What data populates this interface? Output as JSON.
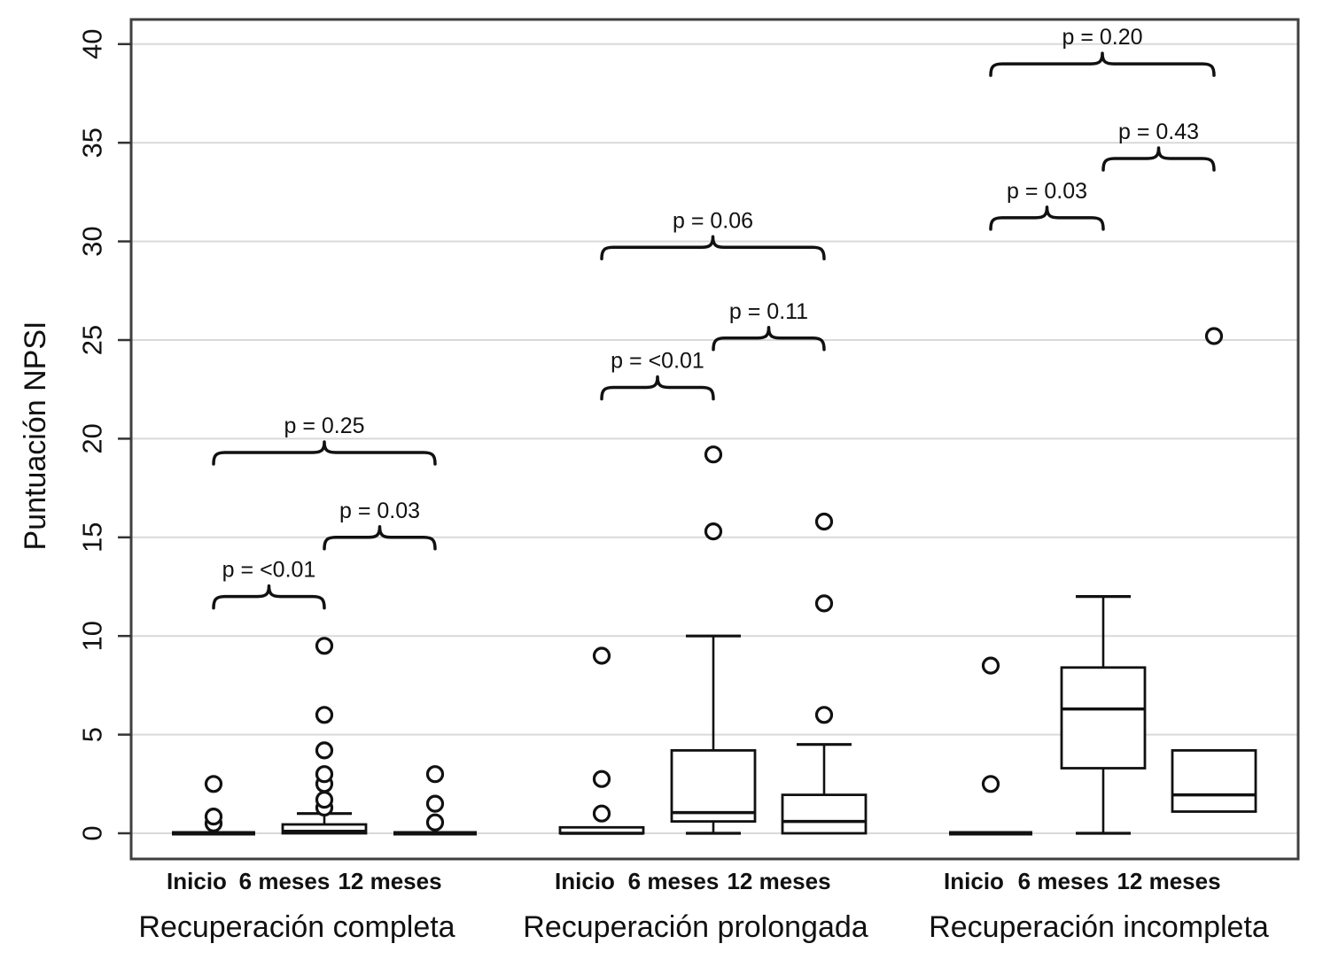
{
  "chart_data": {
    "type": "boxplot",
    "title": "",
    "ylabel": "Puntuación NPSI",
    "xlabel": "",
    "ylim": [
      -1.3,
      41.3
    ],
    "yticks": [
      0,
      5,
      10,
      15,
      20,
      25,
      30,
      35,
      40
    ],
    "grid": "horizontal gridlines every 5 units",
    "legend": "none",
    "colors": {
      "line": "#111111",
      "text": "#111111",
      "grid": "#d9d9d9",
      "border": "#3f3f3f",
      "background": "#ffffff",
      "box_fill": "#ffffff"
    },
    "x_sublabels": [
      "Inicio",
      "6 meses",
      "12 meses"
    ],
    "groups": [
      {
        "label": "Recuperación completa",
        "series": [
          {
            "label": "Inicio",
            "min": 0,
            "q1": 0,
            "median": 0,
            "q3": 0,
            "max": 0,
            "outliers": [
              0.5,
              0.85,
              2.5
            ]
          },
          {
            "label": "6 meses",
            "min": 0,
            "q1": 0,
            "median": 0.1,
            "q3": 0.45,
            "max": 1.0,
            "outliers": [
              1.3,
              1.7,
              2.5,
              3.0,
              4.2,
              6.0,
              9.5
            ]
          },
          {
            "label": "12 meses",
            "min": 0,
            "q1": 0,
            "median": 0,
            "q3": 0,
            "max": 0,
            "outliers": [
              0.55,
              1.5,
              3.0
            ]
          }
        ],
        "comparisons": [
          {
            "label": "p = <0.01",
            "from_idx": 0,
            "to_idx": 1,
            "height": 12.0
          },
          {
            "label": "p = 0.03",
            "from_idx": 1,
            "to_idx": 2,
            "height": 15.0
          },
          {
            "label": "p = 0.25",
            "from_idx": 0,
            "to_idx": 2,
            "height": 19.3
          }
        ]
      },
      {
        "label": "Recuperación prolongada",
        "series": [
          {
            "label": "Inicio",
            "min": 0,
            "q1": 0,
            "median": 0,
            "q3": 0.3,
            "max": 0.3,
            "outliers": [
              1.0,
              2.75,
              9.0
            ]
          },
          {
            "label": "6 meses",
            "min": 0,
            "q1": 0.6,
            "median": 1.05,
            "q3": 4.2,
            "max": 10.0,
            "outliers": [
              15.3,
              19.2
            ]
          },
          {
            "label": "12 meses",
            "min": 0,
            "q1": 0,
            "median": 0.6,
            "q3": 1.95,
            "max": 4.5,
            "outliers": [
              6.0,
              11.65,
              15.8
            ]
          }
        ],
        "comparisons": [
          {
            "label": "p = <0.01",
            "from_idx": 0,
            "to_idx": 1,
            "height": 22.6
          },
          {
            "label": "p = 0.11",
            "from_idx": 1,
            "to_idx": 2,
            "height": 25.1
          },
          {
            "label": "p = 0.06",
            "from_idx": 0,
            "to_idx": 2,
            "height": 29.7
          }
        ]
      },
      {
        "label": "Recuperación incompleta",
        "series": [
          {
            "label": "Inicio",
            "min": 0,
            "q1": 0,
            "median": 0,
            "q3": 0,
            "max": 0,
            "outliers": [
              2.5,
              8.5
            ]
          },
          {
            "label": "6 meses",
            "min": 0,
            "q1": 3.3,
            "median": 6.3,
            "q3": 8.4,
            "max": 12.0,
            "outliers": []
          },
          {
            "label": "12 meses",
            "min": 1.1,
            "q1": 1.1,
            "median": 1.95,
            "q3": 4.2,
            "max": 4.2,
            "outliers": [
              25.2
            ]
          }
        ],
        "comparisons": [
          {
            "label": "p = 0.03",
            "from_idx": 0,
            "to_idx": 1,
            "height": 31.2
          },
          {
            "label": "p = 0.43",
            "from_idx": 1,
            "to_idx": 2,
            "height": 34.2
          },
          {
            "label": "p = 0.20",
            "from_idx": 0,
            "to_idx": 2,
            "height": 39.0
          }
        ]
      }
    ]
  }
}
